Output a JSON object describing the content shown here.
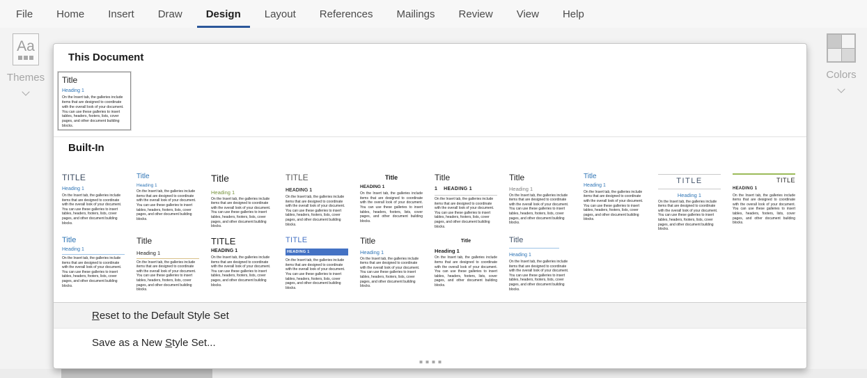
{
  "palette": {
    "accent_blue": "#2b579a",
    "heading_blue": "#2e74b5",
    "heading_green": "#76923c",
    "rule_green": "#9bbb59",
    "rule_tan": "#d8c08a",
    "shade_blue": "#4472c4",
    "disabled_gray": "#a6a6a6"
  },
  "ribbon": {
    "tabs": [
      {
        "label": "File",
        "active": false
      },
      {
        "label": "Home",
        "active": false
      },
      {
        "label": "Insert",
        "active": false
      },
      {
        "label": "Draw",
        "active": false
      },
      {
        "label": "Design",
        "active": true
      },
      {
        "label": "Layout",
        "active": false
      },
      {
        "label": "References",
        "active": false
      },
      {
        "label": "Mailings",
        "active": false
      },
      {
        "label": "Review",
        "active": false
      },
      {
        "label": "View",
        "active": false
      },
      {
        "label": "Help",
        "active": false
      }
    ],
    "themes_button": {
      "label": "Themes",
      "icon_text": "Aa"
    },
    "colors_button": {
      "label": "Colors"
    }
  },
  "gallery": {
    "body_filler": "On the Insert tab, the galleries include items that are designed to coordinate with the overall look of your document. You can use these galleries to insert tables, headers, footers, lists, cover pages, and other document building blocks.",
    "this_document": {
      "header": "This Document",
      "items": [
        {
          "variant": "vdoc",
          "title": "Title",
          "heading": "Heading 1",
          "selected": true
        }
      ]
    },
    "built_in": {
      "header": "Built-In",
      "rows": [
        [
          {
            "variant": "v1",
            "title": "TITLE",
            "heading": "Heading 1"
          },
          {
            "variant": "v2",
            "title": "Title",
            "heading": "Heading 1"
          },
          {
            "variant": "v3",
            "title": "Title",
            "heading": "Heading 1"
          },
          {
            "variant": "v4",
            "title": "TITLE",
            "heading": "HEADING 1"
          },
          {
            "variant": "v5",
            "title": "Title",
            "heading": "HEADING 1"
          },
          {
            "variant": "v6",
            "title": "Title",
            "heading": "1    HEADING 1"
          },
          {
            "variant": "v7",
            "title": "Title",
            "heading": "Heading 1"
          },
          {
            "variant": "v8",
            "title": "Title",
            "heading": "Heading 1"
          },
          {
            "variant": "v9",
            "title": "TITLE",
            "heading": "Heading 1"
          },
          {
            "variant": "v10",
            "title": "TITLE",
            "heading": "HEADING 1"
          }
        ],
        [
          {
            "variant": "v11",
            "title": "Title",
            "heading": "Heading 1"
          },
          {
            "variant": "v12",
            "title": "Title",
            "heading": "Heading 1"
          },
          {
            "variant": "v13",
            "title": "TITLE",
            "heading": "HEADING 1"
          },
          {
            "variant": "v14",
            "title": "TITLE",
            "heading": "HEADING 1"
          },
          {
            "variant": "v15",
            "title": "Title",
            "heading": "Heading 1"
          },
          {
            "variant": "v16",
            "title": "Title",
            "heading": "Heading 1"
          },
          {
            "variant": "v17",
            "title": "Title",
            "heading": "Heading 1"
          }
        ]
      ]
    },
    "menu": [
      {
        "pre": "",
        "accel": "R",
        "post": "eset to the Default Style Set"
      },
      {
        "pre": "Save as a New ",
        "accel": "S",
        "post": "tyle Set..."
      }
    ]
  }
}
